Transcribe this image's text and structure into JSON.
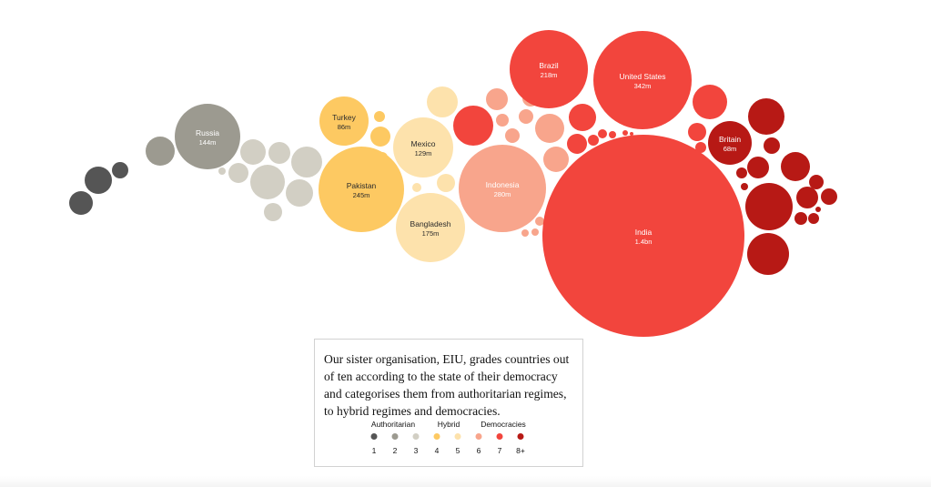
{
  "chart_data": {
    "type": "bubble",
    "legend_position": "bottom-center",
    "categories": [
      {
        "score": "1",
        "group": "Authoritarian",
        "color": "#555555"
      },
      {
        "score": "2",
        "group": "Authoritarian",
        "color": "#9c9a90"
      },
      {
        "score": "3",
        "group": "Authoritarian",
        "color": "#d2cfc4"
      },
      {
        "score": "4",
        "group": "Hybrid",
        "color": "#fdc962"
      },
      {
        "score": "5",
        "group": "Hybrid",
        "color": "#fde2ac"
      },
      {
        "score": "6",
        "group": "Democracies",
        "color": "#f8a58c"
      },
      {
        "score": "7",
        "group": "Democracies",
        "color": "#f2453d"
      },
      {
        "score": "8+",
        "group": "Democracies",
        "color": "#b71915"
      }
    ],
    "labelled_bubbles": [
      {
        "name": "Russia",
        "value": "144m",
        "category": "2"
      },
      {
        "name": "Turkey",
        "value": "86m",
        "category": "4"
      },
      {
        "name": "Pakistan",
        "value": "245m",
        "category": "4"
      },
      {
        "name": "Mexico",
        "value": "129m",
        "category": "5"
      },
      {
        "name": "Bangladesh",
        "value": "175m",
        "category": "5"
      },
      {
        "name": "Indonesia",
        "value": "280m",
        "category": "6"
      },
      {
        "name": "Brazil",
        "value": "218m",
        "category": "7"
      },
      {
        "name": "United States",
        "value": "342m",
        "category": "7"
      },
      {
        "name": "India",
        "value": "1.4bn",
        "category": "7"
      },
      {
        "name": "Britain",
        "value": "68m",
        "category": "8+"
      }
    ]
  },
  "legend": {
    "note": "Our sister organisation, EIU, grades countries out of ten according to the state of their democracy and categorises them from authoritarian regimes, to hybrid regimes and democracies.",
    "group_labels": [
      "Authoritarian",
      "Hybrid",
      "Democracies"
    ],
    "scale": [
      "1",
      "2",
      "3",
      "4",
      "5",
      "6",
      "7",
      "8+"
    ]
  }
}
